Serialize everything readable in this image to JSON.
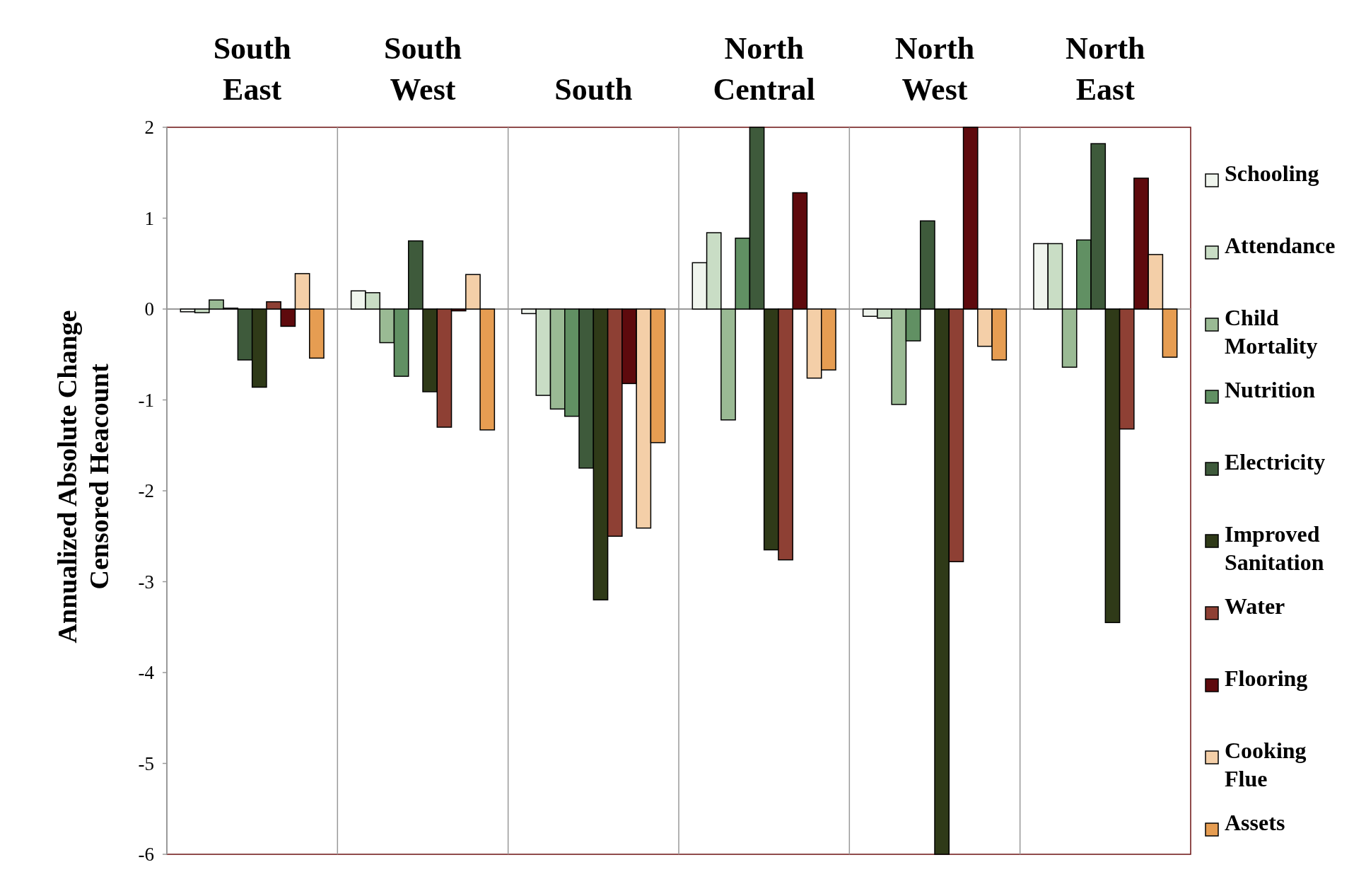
{
  "chart_data": {
    "type": "bar",
    "ylabel": "Annualized Absolute Change\nCensored Heacount",
    "categories": [
      "South East",
      "South West",
      "South",
      "North Central",
      "North West",
      "North East"
    ],
    "series": [
      {
        "name": "Schooling",
        "color": "#f0f5ee",
        "values": [
          -0.03,
          0.2,
          -0.05,
          0.51,
          -0.08,
          0.72
        ]
      },
      {
        "name": "Attendance",
        "color": "#c9ddc5",
        "values": [
          -0.04,
          0.18,
          -0.95,
          0.84,
          -0.1,
          0.72
        ]
      },
      {
        "name": "Child Mortality",
        "color": "#9aba94",
        "values": [
          0.1,
          -0.37,
          -1.1,
          -1.22,
          -1.05,
          -0.64
        ]
      },
      {
        "name": "Nutrition",
        "color": "#619063",
        "values": [
          0.01,
          -0.74,
          -1.18,
          0.78,
          -0.35,
          0.76
        ]
      },
      {
        "name": "Electricity",
        "color": "#3e5a3b",
        "values": [
          -0.56,
          0.75,
          -1.75,
          2,
          0.97,
          1.82
        ]
      },
      {
        "name": "Improved Sanitation",
        "color": "#2f3a18",
        "values": [
          -0.86,
          -0.91,
          -3.2,
          -2.65,
          -6,
          -3.45
        ]
      },
      {
        "name": "Water",
        "color": "#8e4034",
        "values": [
          0.08,
          -1.3,
          -2.5,
          -2.76,
          -2.78,
          -1.32
        ]
      },
      {
        "name": "Flooring",
        "color": "#5e0a0d",
        "values": [
          -0.19,
          -0.02,
          -0.82,
          1.28,
          2,
          1.44
        ]
      },
      {
        "name": "Cooking Flue",
        "color": "#f4cfa8",
        "values": [
          0.39,
          0.38,
          -2.41,
          -0.76,
          -0.41,
          0.6
        ]
      },
      {
        "name": "Assets",
        "color": "#e69d52",
        "values": [
          -0.54,
          -1.33,
          -1.47,
          -0.67,
          -0.56,
          -0.53
        ]
      }
    ],
    "ylim": [
      -6,
      2
    ],
    "yticks": [
      -6,
      -5,
      -4,
      -3,
      -2,
      -1,
      0,
      1,
      2
    ],
    "grid": false,
    "legend": "right"
  }
}
